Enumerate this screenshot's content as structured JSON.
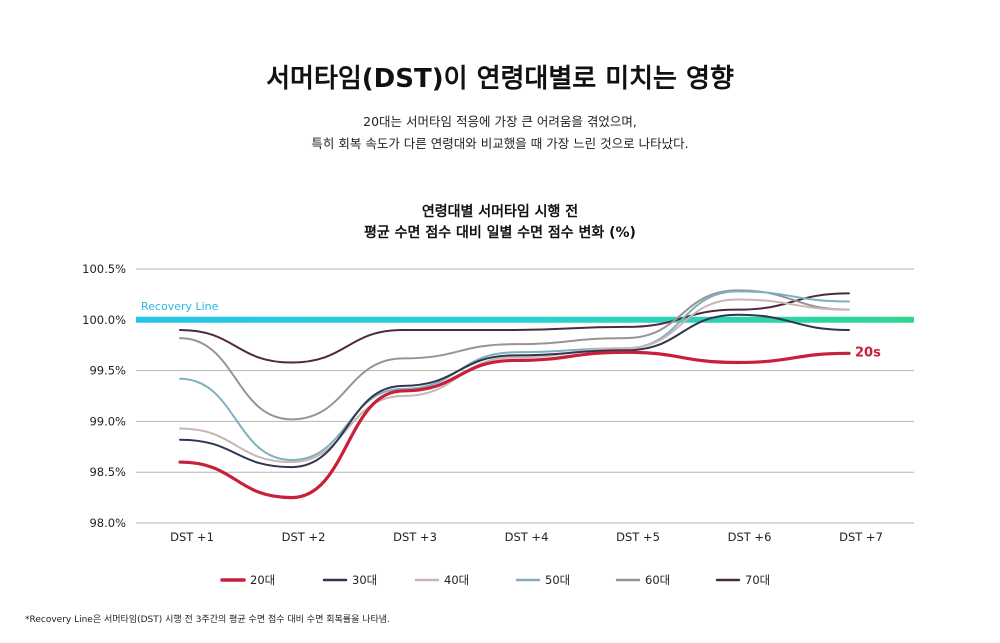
{
  "header": {
    "title": "서머타임(DST)이 연령대별로 미치는 영향",
    "subtitle_line1": "20대는 서머타임 적응에 가장 큰 어려움을 겪었으며,",
    "subtitle_line2": "특히 회복 속도가 다른 연령대와 비교했을 때 가장 느린 것으로 나타났다."
  },
  "chart_data": {
    "type": "line",
    "title_line1": "연령대별 서머타임 시행 전",
    "title_line2": "평균 수면 점수 대비 일별 수면 점수 변화 (%)",
    "categories": [
      "DST +1",
      "DST +2",
      "DST +3",
      "DST +4",
      "DST +5",
      "DST +6",
      "DST +7"
    ],
    "y_ticks": [
      "100.5%",
      "100.0%",
      "99.5%",
      "99.0%",
      "98.5%",
      "98.0%"
    ],
    "ylim": [
      98.0,
      100.5
    ],
    "grid": true,
    "legend_position": "bottom",
    "recovery_line": {
      "label": "Recovery Line",
      "value": 100.0
    },
    "series": [
      {
        "name": "20대",
        "color": "#c8203a",
        "width": 3.2,
        "values": [
          98.6,
          98.25,
          99.3,
          99.6,
          99.68,
          99.58,
          99.67
        ],
        "end_label": "20s"
      },
      {
        "name": "30대",
        "color": "#303650",
        "width": 2,
        "values": [
          98.82,
          98.55,
          99.35,
          99.65,
          99.7,
          100.05,
          99.9
        ]
      },
      {
        "name": "40대",
        "color": "#c9b6b2",
        "width": 2,
        "values": [
          98.93,
          98.6,
          99.25,
          99.63,
          99.72,
          100.2,
          100.1
        ]
      },
      {
        "name": "50대",
        "color": "#7fb0bd",
        "width": 2,
        "values": [
          99.42,
          98.62,
          99.32,
          99.68,
          99.72,
          100.28,
          100.18
        ]
      },
      {
        "name": "60대",
        "color": "#9a9396",
        "width": 2,
        "values": [
          99.82,
          99.02,
          99.62,
          99.76,
          99.82,
          100.29,
          100.1
        ]
      },
      {
        "name": "70대",
        "color": "#4d2a3f",
        "width": 2,
        "values": [
          99.9,
          99.58,
          99.9,
          99.9,
          99.93,
          100.1,
          100.26
        ]
      }
    ]
  },
  "footnote": "*Recovery Line은 서머타임(DST) 시행 전 3주간의 평균 수면 점수 대비 수면 회복률을 나타냄."
}
